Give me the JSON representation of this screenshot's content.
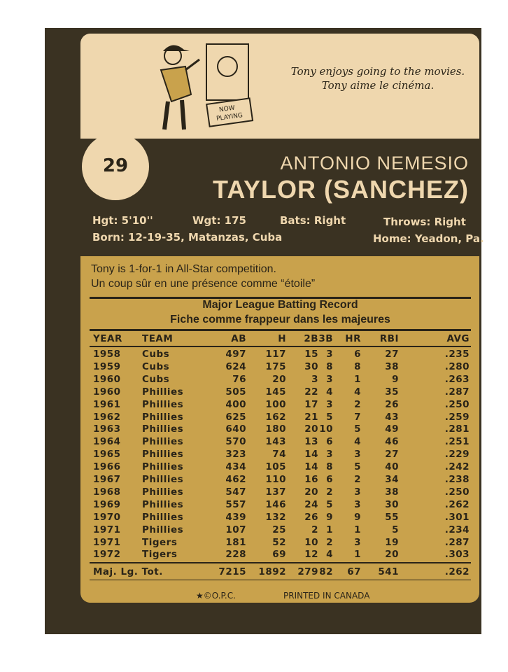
{
  "card": {
    "number": "29",
    "first_name": "ANTONIO NEMESIO",
    "last_name": "TAYLOR (SANCHEZ)",
    "cartoon": {
      "sign": "NOW PLAYING",
      "caption_en": "Tony enjoys going to the movies.",
      "caption_fr": "Tony aime le cinéma."
    },
    "bio": {
      "height": "Hgt: 5'10''",
      "weight": "Wgt: 175",
      "bats": "Bats: Right",
      "throws": "Throws: Right",
      "born": "Born: 12-19-35, Matanzas, Cuba",
      "home": "Home: Yeadon, Pa."
    },
    "fact_en": "Tony is 1-for-1 in All-Star competition.",
    "fact_fr": "Un coup sûr en une présence comme “étoile”",
    "table_title_en": "Major League Batting Record",
    "table_title_fr": "Fiche comme frappeur dans les majeures",
    "columns": [
      "YEAR",
      "TEAM",
      "AB",
      "H",
      "2B",
      "3B",
      "HR",
      "RBI",
      "AVG"
    ],
    "rows": [
      [
        "1958",
        "Cubs",
        "497",
        "117",
        "15",
        "3",
        "6",
        "27",
        ".235"
      ],
      [
        "1959",
        "Cubs",
        "624",
        "175",
        "30",
        "8",
        "8",
        "38",
        ".280"
      ],
      [
        "1960",
        "Cubs",
        "76",
        "20",
        "3",
        "3",
        "1",
        "9",
        ".263"
      ],
      [
        "1960",
        "Phillies",
        "505",
        "145",
        "22",
        "4",
        "4",
        "35",
        ".287"
      ],
      [
        "1961",
        "Phillies",
        "400",
        "100",
        "17",
        "3",
        "2",
        "26",
        ".250"
      ],
      [
        "1962",
        "Phillies",
        "625",
        "162",
        "21",
        "5",
        "7",
        "43",
        ".259"
      ],
      [
        "1963",
        "Phillies",
        "640",
        "180",
        "20",
        "10",
        "5",
        "49",
        ".281"
      ],
      [
        "1964",
        "Phillies",
        "570",
        "143",
        "13",
        "6",
        "4",
        "46",
        ".251"
      ],
      [
        "1965",
        "Phillies",
        "323",
        "74",
        "14",
        "3",
        "3",
        "27",
        ".229"
      ],
      [
        "1966",
        "Phillies",
        "434",
        "105",
        "14",
        "8",
        "5",
        "40",
        ".242"
      ],
      [
        "1967",
        "Phillies",
        "462",
        "110",
        "16",
        "6",
        "2",
        "34",
        ".238"
      ],
      [
        "1968",
        "Phillies",
        "547",
        "137",
        "20",
        "2",
        "3",
        "38",
        ".250"
      ],
      [
        "1969",
        "Phillies",
        "557",
        "146",
        "24",
        "5",
        "3",
        "30",
        ".262"
      ],
      [
        "1970",
        "Phillies",
        "439",
        "132",
        "26",
        "9",
        "9",
        "55",
        ".301"
      ],
      [
        "1971",
        "Phillies",
        "107",
        "25",
        "2",
        "1",
        "1",
        "5",
        ".234"
      ],
      [
        "1971",
        "Tigers",
        "181",
        "52",
        "10",
        "2",
        "3",
        "19",
        ".287"
      ],
      [
        "1972",
        "Tigers",
        "228",
        "69",
        "12",
        "4",
        "1",
        "20",
        ".303"
      ]
    ],
    "totals": [
      "Maj. Lg. Tot.",
      "7215",
      "1892",
      "279",
      "82",
      "67",
      "541",
      ".262"
    ],
    "copyright": "★©O.P.C.",
    "printed": "PRINTED IN CANADA"
  },
  "colors": {
    "dark": "#3a3222",
    "cream": "#efd7ae",
    "gold": "#c9a24c"
  }
}
